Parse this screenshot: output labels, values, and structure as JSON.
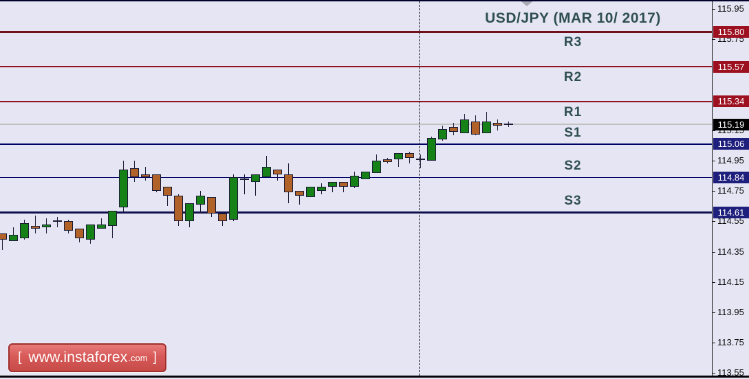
{
  "title": "USD/JPY (MAR 10/ 2017)",
  "logo": {
    "bracket_left": "[",
    "domain": "www.instaforex",
    "tld": ".com",
    "bracket_right": "]"
  },
  "colors": {
    "background": "#e5e5f3",
    "resistance_line": "#8e1423",
    "resistance_badge": "#9c1020",
    "support_line": "#000066",
    "support_badge": "#1e1e7c",
    "current_badge": "#000000",
    "current_line": "#c0c0c0",
    "bull_candle": "#168116",
    "bear_candle": "#b06228",
    "label_text": "#2f4f4f"
  },
  "chart_data": {
    "type": "candlestick",
    "title": "USD/JPY (MAR 10/ 2017)",
    "symbol": "USD/JPY",
    "date_label": "MAR 10/ 2017",
    "current_price": 115.19,
    "ylim": [
      113.51,
      116.01
    ],
    "grid": false,
    "y_ticks": [
      115.95,
      115.75,
      115.55,
      115.35,
      115.15,
      114.95,
      114.75,
      114.55,
      114.35,
      114.15,
      113.95,
      113.75,
      113.55
    ],
    "levels": [
      {
        "label": "R3",
        "price": 115.8,
        "kind": "resistance",
        "thick": true
      },
      {
        "label": "R2",
        "price": 115.57,
        "kind": "resistance",
        "thick": false
      },
      {
        "label": "R1",
        "price": 115.34,
        "kind": "resistance",
        "thick": false
      },
      {
        "label": "S1",
        "price": 115.06,
        "kind": "support",
        "thick": false
      },
      {
        "label": "S2",
        "price": 114.84,
        "kind": "support",
        "thick": false
      },
      {
        "label": "S3",
        "price": 114.61,
        "kind": "support",
        "thick": true
      }
    ],
    "candles_format": [
      "open",
      "high",
      "low",
      "close"
    ],
    "candles": [
      [
        114.47,
        114.47,
        114.36,
        114.43
      ],
      [
        114.42,
        114.51,
        114.42,
        114.46
      ],
      [
        114.44,
        114.56,
        114.43,
        114.54
      ],
      [
        114.52,
        114.59,
        114.47,
        114.5
      ],
      [
        114.51,
        114.57,
        114.47,
        114.53
      ],
      [
        114.55,
        114.58,
        114.51,
        114.55
      ],
      [
        114.55,
        114.56,
        114.47,
        114.49
      ],
      [
        114.5,
        114.5,
        114.41,
        114.44
      ],
      [
        114.43,
        114.53,
        114.4,
        114.53
      ],
      [
        114.5,
        114.57,
        114.5,
        114.53
      ],
      [
        114.52,
        114.62,
        114.44,
        114.62
      ],
      [
        114.64,
        114.95,
        114.61,
        114.89
      ],
      [
        114.9,
        114.95,
        114.81,
        114.84
      ],
      [
        114.86,
        114.91,
        114.82,
        114.84
      ],
      [
        114.86,
        114.86,
        114.74,
        114.75
      ],
      [
        114.78,
        114.78,
        114.65,
        114.72
      ],
      [
        114.72,
        114.73,
        114.52,
        114.55
      ],
      [
        114.55,
        114.67,
        114.51,
        114.67
      ],
      [
        114.66,
        114.75,
        114.6,
        114.72
      ],
      [
        114.71,
        114.71,
        114.58,
        114.6
      ],
      [
        114.6,
        114.6,
        114.52,
        114.55
      ],
      [
        114.56,
        114.86,
        114.55,
        114.84
      ],
      [
        114.83,
        114.86,
        114.73,
        114.83
      ],
      [
        114.81,
        114.86,
        114.72,
        114.86
      ],
      [
        114.84,
        114.98,
        114.84,
        114.91
      ],
      [
        114.89,
        114.89,
        114.82,
        114.86
      ],
      [
        114.86,
        114.93,
        114.67,
        114.74
      ],
      [
        114.75,
        114.75,
        114.66,
        114.72
      ],
      [
        114.71,
        114.78,
        114.71,
        114.78
      ],
      [
        114.75,
        114.8,
        114.73,
        114.78
      ],
      [
        114.78,
        114.81,
        114.74,
        114.81
      ],
      [
        114.81,
        114.81,
        114.74,
        114.78
      ],
      [
        114.78,
        114.88,
        114.77,
        114.85
      ],
      [
        114.83,
        114.88,
        114.83,
        114.88
      ],
      [
        114.87,
        114.99,
        114.87,
        114.95
      ],
      [
        114.96,
        114.97,
        114.93,
        114.95
      ],
      [
        114.96,
        115.0,
        114.91,
        115.0
      ],
      [
        115.0,
        115.01,
        114.93,
        114.97
      ],
      [
        114.96,
        114.99,
        114.9,
        114.96
      ],
      [
        114.95,
        115.11,
        114.95,
        115.1
      ],
      [
        115.09,
        115.18,
        115.08,
        115.16
      ],
      [
        115.17,
        115.2,
        115.12,
        115.14
      ],
      [
        115.13,
        115.26,
        115.13,
        115.22
      ],
      [
        115.21,
        115.25,
        115.12,
        115.12
      ],
      [
        115.13,
        115.27,
        115.13,
        115.21
      ],
      [
        115.2,
        115.22,
        115.15,
        115.18
      ],
      [
        115.19,
        115.21,
        115.17,
        115.19
      ]
    ]
  }
}
